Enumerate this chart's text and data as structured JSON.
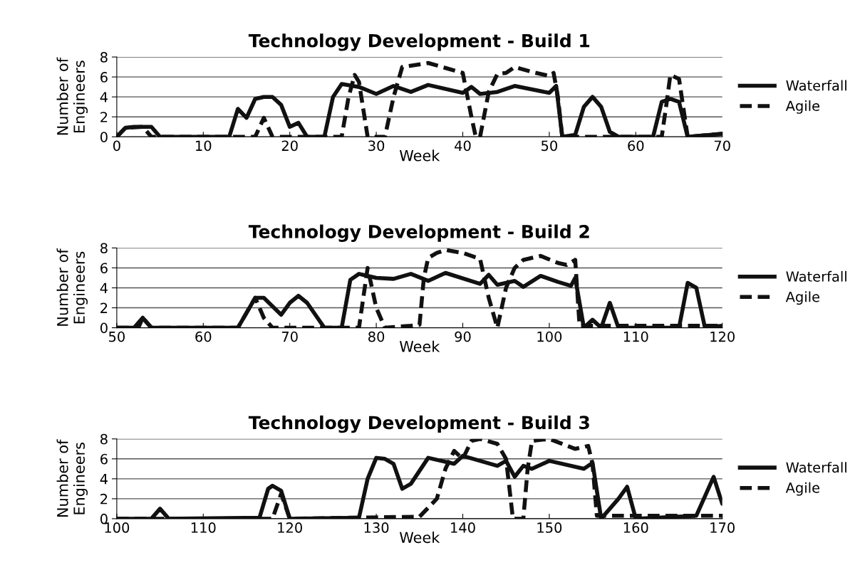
{
  "chart_data": [
    {
      "type": "line",
      "title": "Technology Development - Build 1",
      "xlabel": "Week",
      "ylabel": "Number of\nEngineers",
      "xlim": [
        0,
        70
      ],
      "xticks": [
        0,
        10,
        20,
        30,
        40,
        50,
        60,
        70
      ],
      "ylim": [
        0,
        8
      ],
      "yticks": [
        0,
        2,
        4,
        6,
        8
      ],
      "grid": "y",
      "legend": "right",
      "series": [
        {
          "name": "Waterfall",
          "color": "#111111",
          "line_style": "solid",
          "x": [
            0,
            1,
            2,
            4,
            5,
            13,
            14,
            15,
            16,
            17,
            18,
            19,
            20,
            21,
            22,
            24,
            25,
            26,
            28,
            30,
            32,
            34,
            36,
            40,
            41,
            42,
            44,
            46,
            50,
            50.8,
            51.5,
            53,
            54,
            55,
            56,
            57,
            58,
            62,
            63,
            64,
            65,
            66,
            70
          ],
          "values": [
            0,
            0.9,
            1,
            1,
            0,
            0,
            2.8,
            1.9,
            3.8,
            4,
            4,
            3.2,
            1,
            1.4,
            0,
            0,
            4,
            5.3,
            5,
            4.3,
            5.1,
            4.5,
            5.2,
            4.4,
            5,
            4.3,
            4.5,
            5.1,
            4.4,
            5.1,
            0,
            0.2,
            3,
            4,
            3,
            0.5,
            0,
            0,
            3.5,
            3.8,
            3.5,
            0,
            0.3
          ]
        },
        {
          "name": "Agile",
          "color": "#111111",
          "line_style": "dashed",
          "x": [
            0,
            1,
            3,
            4,
            16,
            17,
            18,
            26,
            26.8,
            27.5,
            28,
            29,
            31,
            32,
            33,
            36,
            38,
            40,
            41,
            41.5,
            42,
            43,
            44,
            45,
            46,
            48,
            50,
            50.5,
            51,
            51.5,
            63,
            63.5,
            64,
            65,
            66,
            70
          ],
          "values": [
            0,
            0.9,
            1,
            0,
            0,
            1.9,
            0,
            0,
            4,
            6.2,
            5.5,
            0,
            0,
            4,
            7,
            7.4,
            6.9,
            6.4,
            2,
            0,
            0,
            4.5,
            6.3,
            6.4,
            7,
            6.5,
            6.1,
            6.4,
            4,
            0,
            0,
            3,
            6.2,
            5.8,
            0,
            0.3
          ]
        }
      ]
    },
    {
      "type": "line",
      "title": "Technology Development - Build 2",
      "xlabel": "Week",
      "ylabel": "Number of\nEngineers",
      "xlim": [
        50,
        120
      ],
      "xticks": [
        50,
        60,
        70,
        80,
        90,
        100,
        110,
        120
      ],
      "ylim": [
        0,
        8
      ],
      "yticks": [
        0,
        2,
        4,
        6,
        8
      ],
      "grid": "y",
      "legend": "right",
      "series": [
        {
          "name": "Waterfall",
          "color": "#111111",
          "line_style": "solid",
          "x": [
            50,
            52,
            53,
            54,
            64,
            65,
            66,
            67,
            69,
            70,
            71,
            72,
            74,
            76,
            77,
            78,
            80,
            82,
            84,
            86,
            88,
            92,
            93,
            94,
            96,
            97,
            99,
            101,
            102.5,
            103,
            104,
            105,
            106,
            107,
            108,
            115,
            116,
            117,
            118,
            120
          ],
          "values": [
            0,
            0,
            1,
            0,
            0,
            1.5,
            3,
            3,
            1.3,
            2.5,
            3.2,
            2.5,
            0,
            0,
            4.8,
            5.4,
            5,
            4.9,
            5.4,
            4.7,
            5.5,
            4.4,
            5.3,
            4.3,
            4.7,
            4.1,
            5.2,
            4.6,
            4.2,
            5,
            0,
            0.8,
            0,
            2.5,
            0,
            0,
            4.5,
            4,
            0,
            0.2
          ]
        },
        {
          "name": "Agile",
          "color": "#111111",
          "line_style": "dashed",
          "x": [
            50,
            52.5,
            53,
            54,
            64,
            65,
            66,
            67,
            68,
            73,
            78,
            79,
            80,
            81,
            84,
            85,
            85.5,
            86,
            87,
            88,
            90,
            92,
            93,
            94,
            95,
            96,
            97,
            99,
            101,
            102,
            103,
            103.5,
            120
          ],
          "values": [
            0,
            0,
            1,
            0,
            0,
            1.5,
            3,
            1,
            0,
            0,
            0,
            6,
            2,
            0,
            0.2,
            0.3,
            5,
            7,
            7.5,
            7.8,
            7.5,
            6.9,
            3,
            0,
            4,
            6,
            6.8,
            7.2,
            6.5,
            6.3,
            6.8,
            0.2,
            0.2
          ]
        }
      ]
    },
    {
      "type": "line",
      "title": "Technology Development - Build 3",
      "xlabel": "Week",
      "ylabel": "Number of\nEngineers",
      "xlim": [
        100,
        170
      ],
      "xticks": [
        100,
        110,
        120,
        130,
        140,
        150,
        160,
        170
      ],
      "ylim": [
        0,
        8
      ],
      "yticks": [
        0,
        2,
        4,
        6,
        8
      ],
      "grid": "y",
      "legend": "right",
      "series": [
        {
          "name": "Waterfall",
          "color": "#111111",
          "line_style": "solid",
          "x": [
            100,
            104,
            105,
            106,
            116.5,
            117.5,
            118,
            119,
            120,
            128,
            129,
            130,
            131,
            132,
            133,
            134,
            136,
            139,
            140,
            144,
            145,
            146,
            147,
            148,
            150,
            154,
            155,
            156,
            158,
            159,
            160,
            167,
            169,
            170
          ],
          "values": [
            0,
            0,
            1,
            0,
            0.1,
            3,
            3.3,
            2.8,
            0,
            0.1,
            4,
            6.1,
            6,
            5.5,
            3,
            3.5,
            6.1,
            5.5,
            6.3,
            5.3,
            5.8,
            4.2,
            5.3,
            5,
            5.8,
            5,
            5.6,
            0,
            2,
            3.2,
            0,
            0.3,
            4.2,
            1.5
          ]
        },
        {
          "name": "Agile",
          "color": "#111111",
          "line_style": "dashed",
          "x": [
            100,
            118,
            119,
            120,
            135,
            137,
            138,
            139,
            140,
            141,
            142,
            144,
            145,
            145.8,
            147,
            147.5,
            148,
            150,
            153,
            154.5,
            155,
            155.5,
            170
          ],
          "values": [
            0,
            0,
            2.5,
            0,
            0.2,
            2,
            5,
            6.8,
            6,
            7.8,
            8,
            7.5,
            6,
            0,
            0,
            5,
            7.8,
            8,
            7,
            7.3,
            5.5,
            0.3,
            0.3
          ]
        }
      ]
    }
  ]
}
